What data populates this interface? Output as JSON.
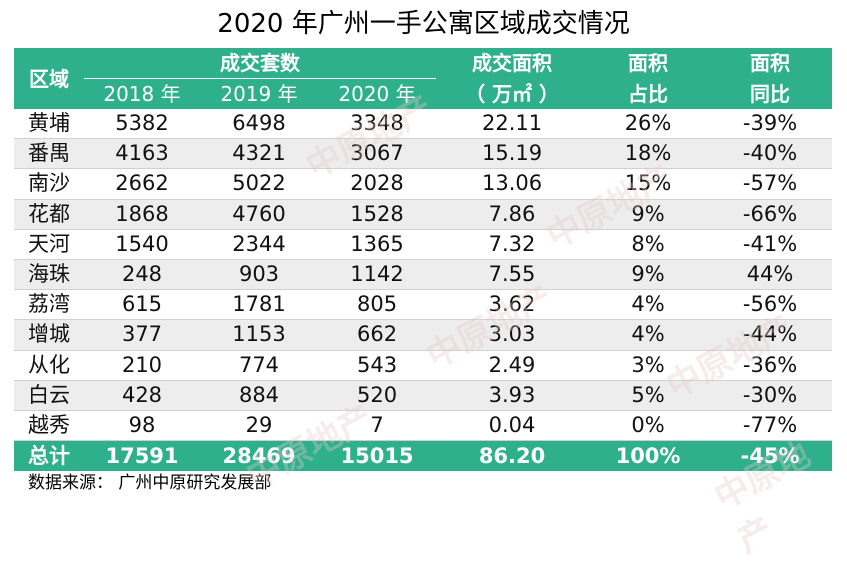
{
  "title": "2020 年广州一手公寓区域成交情况",
  "header": {
    "region": "区域",
    "units_group": "成交套数",
    "years": [
      "2018 年",
      "2019 年",
      "2020 年"
    ],
    "area_line1": "成交面积",
    "area_line2": "（ 万㎡ ）",
    "share_line1": "面积",
    "share_line2": "占比",
    "yoy_line1": "面积",
    "yoy_line2": "同比"
  },
  "rows": [
    {
      "region": "黄埔",
      "y2018": "5382",
      "y2019": "6498",
      "y2020": "3348",
      "area": "22.11",
      "share": "26%",
      "yoy": "-39%"
    },
    {
      "region": "番禺",
      "y2018": "4163",
      "y2019": "4321",
      "y2020": "3067",
      "area": "15.19",
      "share": "18%",
      "yoy": "-40%"
    },
    {
      "region": "南沙",
      "y2018": "2662",
      "y2019": "5022",
      "y2020": "2028",
      "area": "13.06",
      "share": "15%",
      "yoy": "-57%"
    },
    {
      "region": "花都",
      "y2018": "1868",
      "y2019": "4760",
      "y2020": "1528",
      "area": "7.86",
      "share": "9%",
      "yoy": "-66%"
    },
    {
      "region": "天河",
      "y2018": "1540",
      "y2019": "2344",
      "y2020": "1365",
      "area": "7.32",
      "share": "8%",
      "yoy": "-41%"
    },
    {
      "region": "海珠",
      "y2018": "248",
      "y2019": "903",
      "y2020": "1142",
      "area": "7.55",
      "share": "9%",
      "yoy": "44%"
    },
    {
      "region": "荔湾",
      "y2018": "615",
      "y2019": "1781",
      "y2020": "805",
      "area": "3.62",
      "share": "4%",
      "yoy": "-56%"
    },
    {
      "region": "增城",
      "y2018": "377",
      "y2019": "1153",
      "y2020": "662",
      "area": "3.03",
      "share": "4%",
      "yoy": "-44%"
    },
    {
      "region": "从化",
      "y2018": "210",
      "y2019": "774",
      "y2020": "543",
      "area": "2.49",
      "share": "3%",
      "yoy": "-36%"
    },
    {
      "region": "白云",
      "y2018": "428",
      "y2019": "884",
      "y2020": "520",
      "area": "3.93",
      "share": "5%",
      "yoy": "-30%"
    },
    {
      "region": "越秀",
      "y2018": "98",
      "y2019": "29",
      "y2020": "7",
      "area": "0.04",
      "share": "0%",
      "yoy": "-77%"
    }
  ],
  "total": {
    "region": "总计",
    "y2018": "17591",
    "y2019": "28469",
    "y2020": "15015",
    "area": "86.20",
    "share": "100%",
    "yoy": "-45%"
  },
  "source_note": "数据来源： 广州中原研究发展部",
  "watermark_text": "中原地产",
  "colors": {
    "header_bg": "#2fb08d",
    "header_text": "#ffffff",
    "alt_row": "#ededed"
  }
}
